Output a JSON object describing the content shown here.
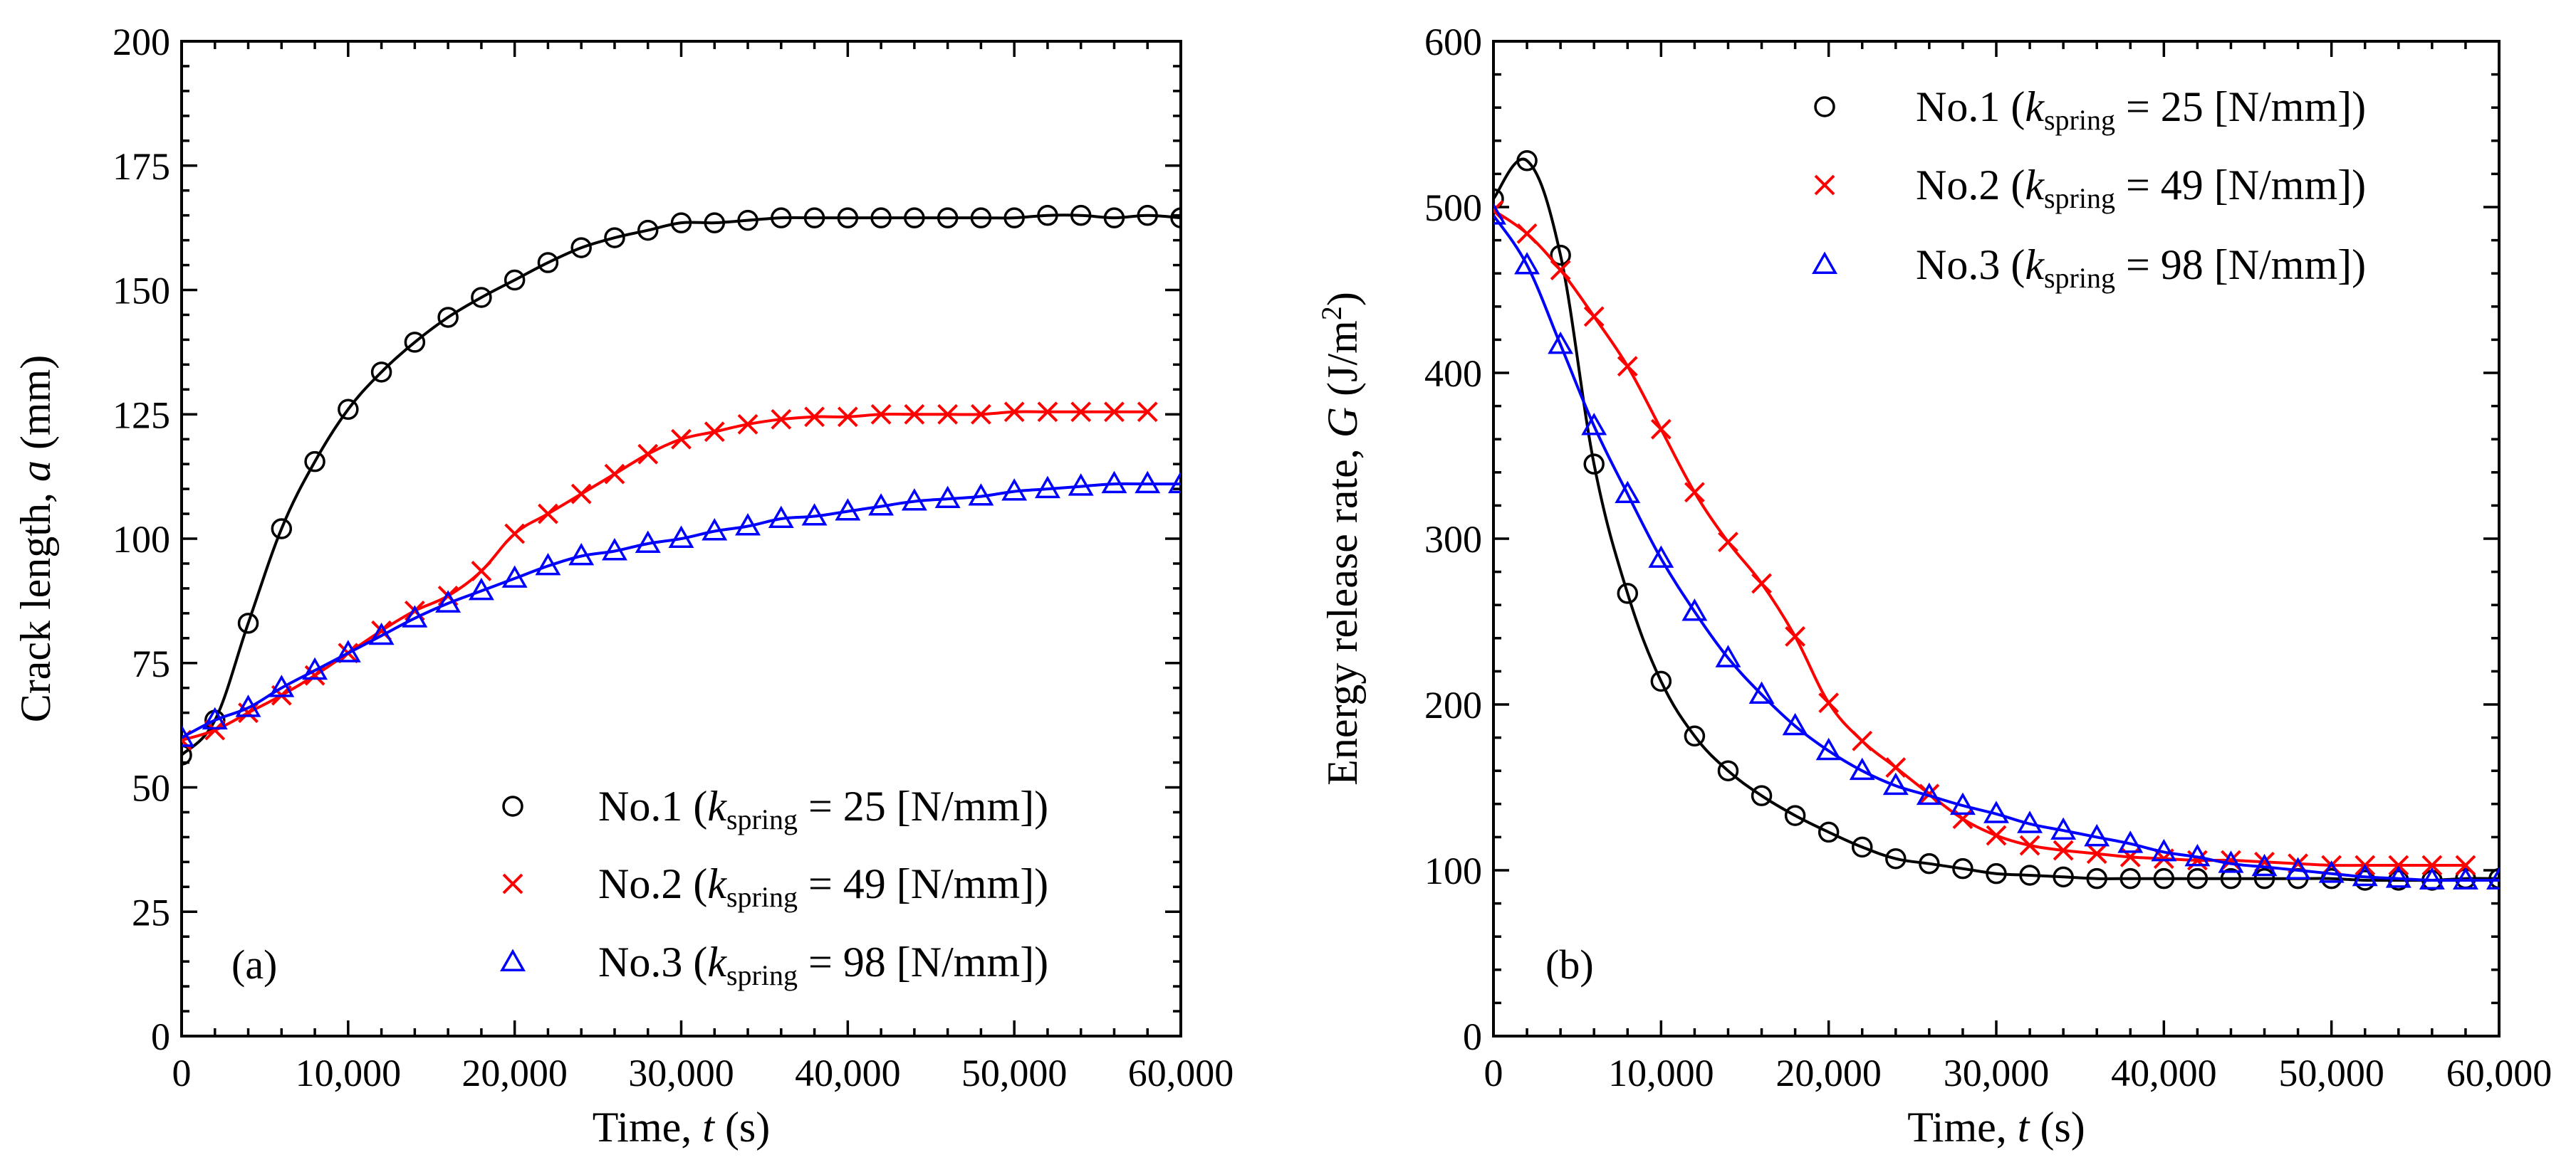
{
  "chart_data": [
    {
      "type": "line",
      "panel_label": "(a)",
      "xlabel": "Time, t (s)",
      "ylabel": "Crack length, a (mm)",
      "xlim": [
        0,
        60000
      ],
      "ylim": [
        0,
        200
      ],
      "xticks": [
        0,
        10000,
        20000,
        30000,
        40000,
        50000,
        60000
      ],
      "xtick_labels": [
        "0",
        "10,000",
        "20,000",
        "30,000",
        "40,000",
        "50,000",
        "60,000"
      ],
      "yticks": [
        0,
        25,
        50,
        75,
        100,
        125,
        150,
        175,
        200
      ],
      "ytick_labels": [
        "0",
        "25",
        "50",
        "75",
        "100",
        "125",
        "150",
        "175",
        "200"
      ],
      "legend_position": "bottom-right",
      "grid": false,
      "series": [
        {
          "name": "No.1 (kspring = 25 [N/mm])",
          "name_parts": {
            "prefix": "No.1 (",
            "k": "k",
            "sub": "spring",
            "value": " = 25 [N/mm])"
          },
          "color": "#000000",
          "marker": "circle",
          "x": [
            0,
            2000,
            4000,
            6000,
            8000,
            10000,
            12000,
            14000,
            16000,
            18000,
            20000,
            22000,
            24000,
            26000,
            28000,
            30000,
            32000,
            34000,
            36000,
            38000,
            40000,
            42000,
            44000,
            46000,
            48000,
            50000,
            52000,
            54000,
            56000,
            58000,
            60000
          ],
          "y": [
            56.5,
            63.5,
            83,
            102,
            115.5,
            126,
            133.5,
            139.5,
            144.5,
            148.5,
            152,
            155.5,
            158.5,
            160.5,
            162,
            163.5,
            163.5,
            164,
            164.5,
            164.5,
            164.5,
            164.5,
            164.5,
            164.5,
            164.5,
            164.5,
            165,
            165,
            164.5,
            165,
            164.5
          ]
        },
        {
          "name": "No.2 (kspring = 49 [N/mm])",
          "name_parts": {
            "prefix": "No.2 (",
            "k": "k",
            "sub": "spring",
            "value": " = 49 [N/mm])"
          },
          "color": "#ff0000",
          "marker": "x",
          "x": [
            0,
            2000,
            4000,
            6000,
            8000,
            10000,
            12000,
            14000,
            16000,
            18000,
            20000,
            22000,
            24000,
            26000,
            28000,
            30000,
            32000,
            34000,
            36000,
            38000,
            40000,
            42000,
            44000,
            46000,
            48000,
            50000,
            52000,
            54000,
            56000,
            58000
          ],
          "y": [
            59.5,
            61.5,
            65,
            68.5,
            72.5,
            77,
            81.5,
            85.5,
            88.5,
            93.5,
            101,
            105,
            109,
            113,
            117,
            120,
            121.5,
            123,
            124,
            124.5,
            124.5,
            125,
            125,
            125,
            125,
            125.5,
            125.5,
            125.5,
            125.5,
            125.5
          ]
        },
        {
          "name": "No.3 (kspring = 98 [N/mm])",
          "name_parts": {
            "prefix": "No.3 (",
            "k": "k",
            "sub": "spring",
            "value": " = 98 [N/mm])"
          },
          "color": "#0000ff",
          "marker": "triangle",
          "x": [
            0,
            2000,
            4000,
            6000,
            8000,
            10000,
            12000,
            14000,
            16000,
            18000,
            20000,
            22000,
            24000,
            26000,
            28000,
            30000,
            32000,
            34000,
            36000,
            38000,
            40000,
            42000,
            44000,
            46000,
            48000,
            50000,
            52000,
            54000,
            56000,
            58000,
            60000
          ],
          "y": [
            60,
            63.5,
            66,
            70,
            73.5,
            77,
            80.5,
            84,
            87,
            89.5,
            92,
            94.5,
            96.5,
            97.5,
            99,
            100,
            101.5,
            102.5,
            104,
            104.5,
            105.5,
            106.5,
            107.5,
            108,
            108.5,
            109.5,
            110,
            110.5,
            111,
            111,
            111
          ]
        }
      ]
    },
    {
      "type": "line",
      "panel_label": "(b)",
      "xlabel": "Time, t (s)",
      "ylabel": "Energy release rate, G (J/m2)",
      "xlim": [
        0,
        60000
      ],
      "ylim": [
        0,
        600
      ],
      "xticks": [
        0,
        10000,
        20000,
        30000,
        40000,
        50000,
        60000
      ],
      "xtick_labels": [
        "0",
        "10,000",
        "20,000",
        "30,000",
        "40,000",
        "50,000",
        "60,000"
      ],
      "yticks": [
        0,
        100,
        200,
        300,
        400,
        500,
        600
      ],
      "ytick_labels": [
        "0",
        "100",
        "200",
        "300",
        "400",
        "500",
        "600"
      ],
      "legend_position": "top-right",
      "grid": false,
      "series": [
        {
          "name": "No.1 (kspring = 25 [N/mm])",
          "name_parts": {
            "prefix": "No.1 (",
            "k": "k",
            "sub": "spring",
            "value": " = 25 [N/mm])"
          },
          "color": "#000000",
          "marker": "circle",
          "x": [
            0,
            2000,
            4000,
            6000,
            8000,
            10000,
            12000,
            14000,
            16000,
            18000,
            20000,
            22000,
            24000,
            26000,
            28000,
            30000,
            32000,
            34000,
            36000,
            38000,
            40000,
            42000,
            44000,
            46000,
            48000,
            50000,
            52000,
            54000,
            56000,
            58000,
            60000
          ],
          "y": [
            505,
            528,
            471,
            345,
            267,
            214,
            181,
            160,
            145,
            133,
            123,
            114,
            107,
            104,
            101,
            98,
            97,
            96,
            95,
            95,
            95,
            95,
            95,
            95,
            95,
            95,
            94,
            94,
            94,
            95,
            95
          ]
        },
        {
          "name": "No.2 (kspring = 49 [N/mm])",
          "name_parts": {
            "prefix": "No.2 (",
            "k": "k",
            "sub": "spring",
            "value": " = 49 [N/mm])"
          },
          "color": "#ff0000",
          "marker": "x",
          "x": [
            0,
            2000,
            4000,
            6000,
            8000,
            10000,
            12000,
            14000,
            16000,
            18000,
            20000,
            22000,
            24000,
            26000,
            28000,
            30000,
            32000,
            34000,
            36000,
            38000,
            40000,
            42000,
            44000,
            46000,
            48000,
            50000,
            52000,
            54000,
            56000,
            58000
          ],
          "y": [
            498,
            484,
            462,
            434,
            404,
            366,
            328,
            298,
            273,
            241,
            201,
            178,
            162,
            146,
            131,
            121,
            115,
            112,
            110,
            108,
            107,
            106,
            106,
            105,
            104,
            103,
            103,
            103,
            103,
            103
          ]
        },
        {
          "name": "No.3 (kspring = 98 [N/mm])",
          "name_parts": {
            "prefix": "No.3 (",
            "k": "k",
            "sub": "spring",
            "value": " = 98 [N/mm])"
          },
          "color": "#0000ff",
          "marker": "triangle",
          "x": [
            0,
            2000,
            4000,
            6000,
            8000,
            10000,
            12000,
            14000,
            16000,
            18000,
            20000,
            22000,
            24000,
            26000,
            28000,
            30000,
            32000,
            34000,
            36000,
            38000,
            40000,
            42000,
            44000,
            46000,
            48000,
            50000,
            52000,
            54000,
            56000,
            58000,
            60000
          ],
          "y": [
            495,
            465,
            417,
            368,
            327,
            288,
            256,
            228,
            206,
            187,
            172,
            160,
            151,
            145,
            139,
            134,
            128,
            124,
            120,
            116,
            111,
            108,
            104,
            102,
            100,
            98,
            96,
            95,
            94,
            94,
            94
          ]
        }
      ]
    }
  ]
}
